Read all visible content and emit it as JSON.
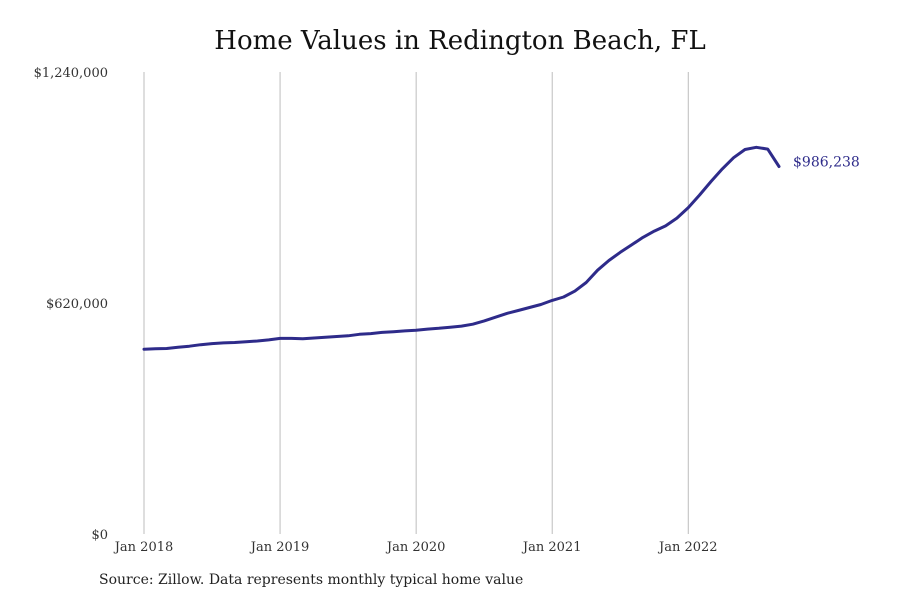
{
  "chart_data": {
    "type": "line",
    "title": "Home Values in Redington Beach, FL",
    "ylim": [
      0,
      1240000
    ],
    "yticks": [
      0,
      620000,
      1240000
    ],
    "ytick_labels": [
      "$0",
      "$620,000",
      "$1,240,000"
    ],
    "xlim": [
      "2018-01",
      "2022-09"
    ],
    "xticks": [
      "2018-01",
      "2019-01",
      "2020-01",
      "2021-01",
      "2022-01"
    ],
    "xtick_labels": [
      "Jan 2018",
      "Jan 2019",
      "Jan 2020",
      "Jan 2021",
      "Jan 2022"
    ],
    "grid": "vertical lines at x ticks",
    "series": [
      {
        "color": "#2e2b8a",
        "end_label": "$986,238",
        "x": [
          "2018-01",
          "2018-02",
          "2018-03",
          "2018-04",
          "2018-05",
          "2018-06",
          "2018-07",
          "2018-08",
          "2018-09",
          "2018-10",
          "2018-11",
          "2018-12",
          "2019-01",
          "2019-02",
          "2019-03",
          "2019-04",
          "2019-05",
          "2019-06",
          "2019-07",
          "2019-08",
          "2019-09",
          "2019-10",
          "2019-11",
          "2019-12",
          "2020-01",
          "2020-02",
          "2020-03",
          "2020-04",
          "2020-05",
          "2020-06",
          "2020-07",
          "2020-08",
          "2020-09",
          "2020-10",
          "2020-11",
          "2020-12",
          "2021-01",
          "2021-02",
          "2021-03",
          "2021-04",
          "2021-05",
          "2021-06",
          "2021-07",
          "2021-08",
          "2021-09",
          "2021-10",
          "2021-11",
          "2021-12",
          "2022-01",
          "2022-02",
          "2022-03",
          "2022-04",
          "2022-05",
          "2022-06",
          "2022-07",
          "2022-08",
          "2022-09"
        ],
        "values": [
          496000,
          497000,
          498000,
          501000,
          504000,
          508000,
          511000,
          513000,
          514000,
          516000,
          518000,
          521000,
          525000,
          525000,
          524000,
          526000,
          528000,
          530000,
          532000,
          536000,
          538000,
          541000,
          543000,
          545000,
          547000,
          550000,
          552000,
          555000,
          558000,
          563000,
          572000,
          582000,
          592000,
          600000,
          608000,
          616000,
          627000,
          636000,
          652000,
          675000,
          708000,
          734000,
          756000,
          776000,
          796000,
          813000,
          827000,
          848000,
          876000,
          910000,
          946000,
          980000,
          1010000,
          1032000,
          1038000,
          1033000,
          986238
        ]
      }
    ]
  },
  "footer": {
    "source": "Source: Zillow. Data represents monthly typical home value"
  }
}
